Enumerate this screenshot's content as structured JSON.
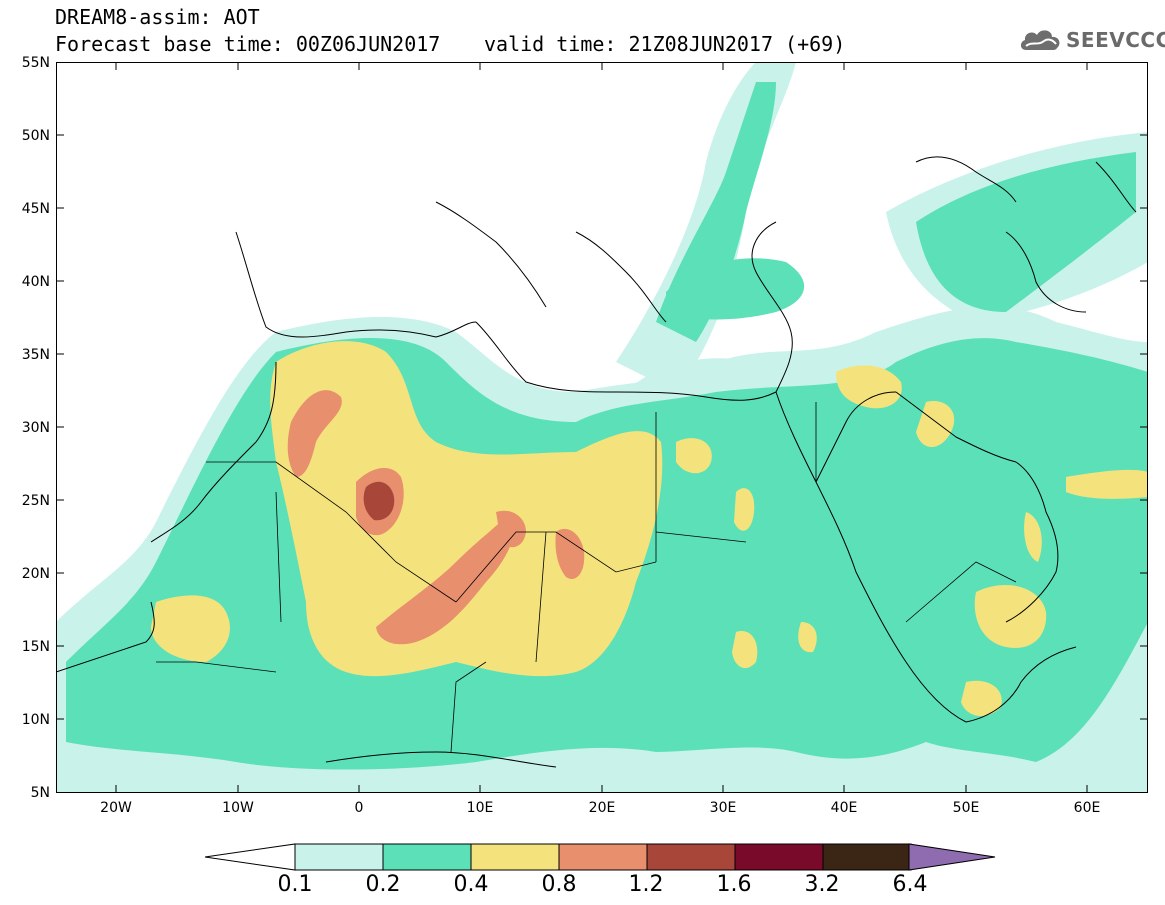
{
  "header": {
    "title": "DREAM8-assim: AOT",
    "base_time": "Forecast base time: 00Z06JUN2017",
    "valid_time": "valid time: 21Z08JUN2017 (+69)",
    "logo_text": "SEEVCCC",
    "logo_icon": "cloud-icon"
  },
  "axes": {
    "lat_labels": [
      "55N",
      "50N",
      "45N",
      "40N",
      "35N",
      "30N",
      "25N",
      "20N",
      "15N",
      "10N",
      "5N"
    ],
    "lon_labels": [
      "20W",
      "10W",
      "0",
      "10E",
      "20E",
      "30E",
      "40E",
      "50E",
      "60E"
    ]
  },
  "colorbar": {
    "labels": [
      "0.1",
      "0.2",
      "0.4",
      "0.8",
      "1.2",
      "1.6",
      "3.2",
      "6.4"
    ],
    "colors": [
      "#c8f2ea",
      "#5ce0b7",
      "#f4e37c",
      "#e88f6e",
      "#a8463a",
      "#7a0a2a",
      "#3b2616",
      "#8f6bb0"
    ]
  },
  "chart_data": {
    "type": "heatmap",
    "variable": "AOT",
    "lon_range": [
      -25,
      65
    ],
    "lat_range": [
      5,
      55
    ],
    "levels": [
      0.1,
      0.2,
      0.4,
      0.8,
      1.2,
      1.6,
      3.2,
      6.4
    ]
  }
}
